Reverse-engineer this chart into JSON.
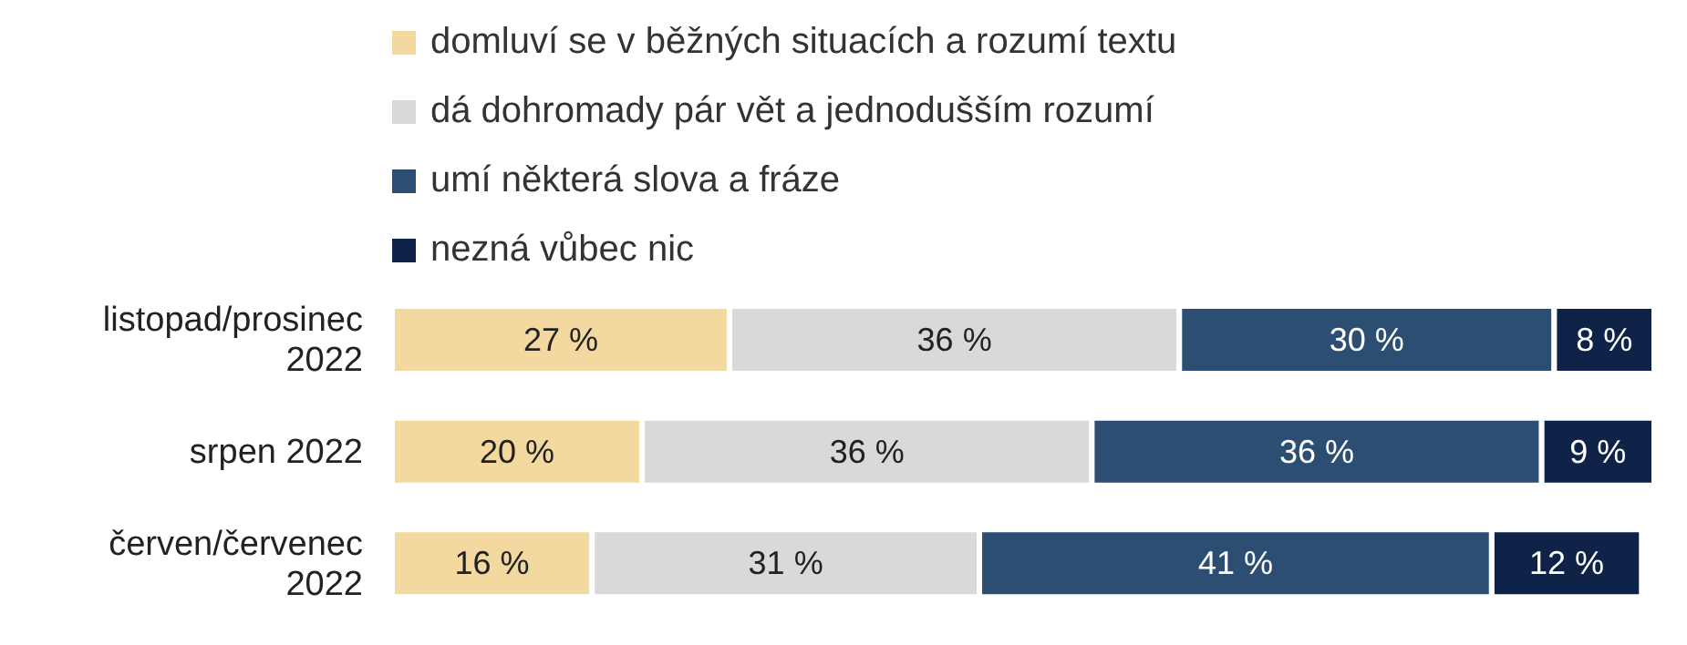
{
  "chart_data": {
    "type": "bar",
    "orientation": "horizontal",
    "stacked": true,
    "legend": "top left",
    "categories": [
      "listopad/prosinec 2022",
      "srpen 2022",
      "červen/červenec 2022"
    ],
    "series": [
      {
        "name": "domluví se v běžných situacích a rozumí textu",
        "color": "#f3d9a0",
        "values": [
          27,
          20,
          16
        ],
        "value_labels": [
          "27 %",
          "20 %",
          "16 %"
        ]
      },
      {
        "name": "dá dohromady pár vět a jednodušším rozumí",
        "color": "#d9d9d9",
        "values": [
          36,
          36,
          31
        ],
        "value_labels": [
          "36 %",
          "36 %",
          "31 %"
        ]
      },
      {
        "name": "umí některá slova a fráze",
        "color": "#2d4e73",
        "values": [
          30,
          36,
          41
        ],
        "value_labels": [
          "30 %",
          "36 %",
          "41 %"
        ]
      },
      {
        "name": "nezná vůbec nic",
        "color": "#0e2347",
        "values": [
          8,
          9,
          12
        ],
        "value_labels": [
          "8 %",
          "9 %",
          "12 %"
        ]
      }
    ]
  }
}
